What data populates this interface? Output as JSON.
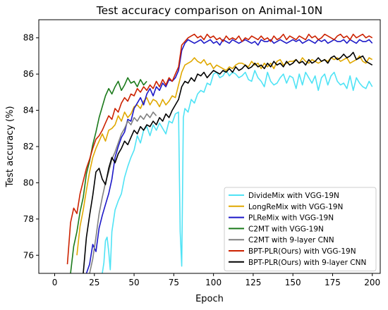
{
  "chart_data": {
    "type": "line",
    "title": "Test accuracy comparison on Animal-10N",
    "xlabel": "Epoch",
    "ylabel": "Test accuracy (%)",
    "xlim": [
      -10,
      205
    ],
    "ylim": [
      75,
      89
    ],
    "xticks": [
      0,
      25,
      50,
      75,
      100,
      125,
      150,
      175,
      200
    ],
    "yticks": [
      76,
      78,
      80,
      82,
      84,
      86,
      88
    ],
    "grid": false,
    "legend_position": "lower-right",
    "series": [
      {
        "name": "DivideMix with VGG-19N",
        "color": "#4fe3f5",
        "x": [
          30,
          31,
          32,
          33,
          34,
          35,
          36,
          38,
          40,
          42,
          44,
          46,
          48,
          50,
          52,
          54,
          56,
          58,
          60,
          62,
          64,
          66,
          68,
          70,
          72,
          74,
          76,
          78,
          79,
          80,
          81,
          82,
          84,
          86,
          88,
          90,
          92,
          94,
          96,
          98,
          100,
          102,
          104,
          106,
          108,
          110,
          112,
          114,
          116,
          118,
          120,
          122,
          124,
          126,
          128,
          130,
          132,
          134,
          136,
          138,
          140,
          142,
          144,
          146,
          148,
          150,
          152,
          154,
          156,
          158,
          160,
          162,
          164,
          166,
          168,
          170,
          172,
          174,
          176,
          178,
          180,
          182,
          184,
          186,
          188,
          190,
          192,
          194,
          196,
          198,
          200
        ],
        "y": [
          75.0,
          75.6,
          76.8,
          77.0,
          76.2,
          75.2,
          77.3,
          78.5,
          79.0,
          79.4,
          80.3,
          80.9,
          81.4,
          81.8,
          82.6,
          82.2,
          82.9,
          83.1,
          82.6,
          83.2,
          82.9,
          83.3,
          83.0,
          82.7,
          83.4,
          83.3,
          83.8,
          83.9,
          77.3,
          75.4,
          83.6,
          84.1,
          83.9,
          84.6,
          84.4,
          84.9,
          85.1,
          85.0,
          85.5,
          85.4,
          86.0,
          86.1,
          85.8,
          85.9,
          86.2,
          85.9,
          86.1,
          86.0,
          85.8,
          85.9,
          86.1,
          85.7,
          85.6,
          86.2,
          85.8,
          85.6,
          85.3,
          86.1,
          85.6,
          85.4,
          85.5,
          85.8,
          86.0,
          85.5,
          85.9,
          85.8,
          85.2,
          86.0,
          85.4,
          86.1,
          85.8,
          85.5,
          85.9,
          85.1,
          85.8,
          86.0,
          85.4,
          85.9,
          86.1,
          85.6,
          85.4,
          85.5,
          85.2,
          85.9,
          85.1,
          85.8,
          85.5,
          85.3,
          85.2,
          85.6,
          85.3
        ]
      },
      {
        "name": "LongReMix with VGG-19N",
        "color": "#e0a800",
        "x": [
          14,
          16,
          18,
          20,
          22,
          24,
          26,
          28,
          30,
          32,
          34,
          36,
          38,
          40,
          42,
          44,
          46,
          48,
          50,
          52,
          54,
          56,
          58,
          60,
          62,
          64,
          66,
          68,
          70,
          72,
          74,
          76,
          78,
          80,
          82,
          84,
          86,
          88,
          90,
          92,
          94,
          96,
          98,
          100,
          102,
          104,
          106,
          108,
          110,
          112,
          114,
          116,
          118,
          120,
          122,
          124,
          126,
          128,
          130,
          132,
          134,
          136,
          138,
          140,
          142,
          144,
          146,
          148,
          150,
          152,
          154,
          156,
          158,
          160,
          162,
          164,
          166,
          168,
          170,
          172,
          174,
          176,
          178,
          180,
          182,
          184,
          186,
          188,
          190,
          192,
          194,
          196,
          198,
          200
        ],
        "y": [
          76.0,
          77.6,
          78.5,
          79.6,
          80.6,
          81.4,
          81.9,
          82.3,
          82.7,
          82.3,
          82.9,
          83.0,
          83.2,
          83.7,
          83.4,
          83.9,
          83.6,
          83.8,
          84.2,
          84.3,
          84.1,
          84.5,
          84.7,
          84.3,
          84.6,
          84.5,
          84.2,
          84.6,
          84.3,
          84.5,
          84.8,
          84.7,
          85.4,
          86.1,
          86.5,
          86.6,
          86.7,
          86.9,
          86.7,
          86.6,
          86.8,
          86.5,
          86.6,
          86.3,
          86.5,
          86.4,
          86.3,
          86.2,
          86.4,
          86.3,
          86.5,
          86.6,
          86.6,
          86.5,
          86.4,
          86.7,
          86.5,
          86.6,
          86.3,
          86.6,
          86.4,
          86.6,
          86.3,
          86.7,
          86.8,
          86.5,
          86.6,
          86.7,
          86.7,
          86.8,
          86.6,
          86.9,
          86.7,
          86.6,
          86.8,
          86.7,
          86.6,
          86.7,
          86.8,
          86.7,
          86.9,
          86.8,
          86.9,
          86.7,
          86.8,
          86.9,
          86.6,
          86.7,
          86.8,
          87.0,
          86.7,
          86.6,
          86.9,
          86.8
        ]
      },
      {
        "name": "PLReMix with VGG-19N",
        "color": "#1c18c8",
        "x": [
          20,
          22,
          24,
          26,
          28,
          30,
          32,
          34,
          36,
          38,
          40,
          42,
          44,
          46,
          48,
          50,
          52,
          54,
          56,
          58,
          60,
          62,
          64,
          66,
          68,
          70,
          72,
          74,
          76,
          78,
          80,
          82,
          84,
          86,
          88,
          90,
          92,
          94,
          96,
          98,
          100,
          102,
          104,
          106,
          108,
          110,
          112,
          114,
          116,
          118,
          120,
          122,
          124,
          126,
          128,
          130,
          132,
          134,
          136,
          138,
          140,
          142,
          144,
          146,
          148,
          150,
          152,
          154,
          156,
          158,
          160,
          162,
          164,
          166,
          168,
          170,
          172,
          174,
          176,
          178,
          180,
          182,
          184,
          186,
          188,
          190,
          192,
          194,
          196,
          198,
          200
        ],
        "y": [
          75.0,
          75.5,
          76.6,
          76.2,
          77.5,
          78.2,
          78.8,
          79.4,
          80.2,
          81.4,
          82.0,
          82.5,
          82.8,
          83.5,
          83.4,
          84.1,
          84.4,
          84.7,
          84.3,
          84.9,
          85.2,
          84.8,
          85.3,
          85.1,
          85.5,
          85.3,
          85.7,
          85.6,
          85.8,
          86.2,
          87.3,
          87.7,
          87.9,
          87.8,
          87.7,
          87.8,
          87.9,
          87.7,
          87.8,
          87.9,
          87.7,
          87.8,
          87.6,
          87.9,
          87.8,
          87.7,
          87.9,
          87.8,
          87.7,
          87.8,
          87.9,
          87.8,
          87.7,
          87.8,
          87.6,
          87.9,
          87.8,
          87.8,
          87.9,
          87.7,
          87.8,
          87.9,
          87.8,
          87.7,
          87.8,
          87.9,
          87.8,
          87.9,
          87.7,
          87.8,
          87.9,
          87.8,
          87.7,
          87.9,
          87.8,
          87.9,
          87.7,
          87.8,
          87.9,
          87.8,
          87.8,
          87.9,
          87.7,
          87.9,
          87.8,
          87.7,
          87.9,
          87.8,
          87.8,
          87.9,
          87.7
        ]
      },
      {
        "name": "C2MT with VGG-19N",
        "color": "#1b7a1b",
        "x": [
          10,
          12,
          14,
          16,
          18,
          20,
          22,
          24,
          26,
          28,
          30,
          32,
          34,
          36,
          38,
          40,
          42,
          44,
          46,
          48,
          50,
          52,
          54,
          56,
          58
        ],
        "y": [
          75.0,
          76.5,
          77.3,
          78.4,
          79.2,
          80.5,
          81.2,
          82.1,
          82.8,
          83.6,
          84.2,
          84.8,
          85.2,
          84.9,
          85.3,
          85.6,
          85.1,
          85.4,
          85.8,
          85.5,
          85.6,
          85.3,
          85.7,
          85.4,
          85.6
        ]
      },
      {
        "name": "C2MT with 9-layer CNN",
        "color": "#808080",
        "x": [
          22,
          24,
          26,
          28,
          30,
          32,
          34,
          36,
          38,
          40,
          42,
          44,
          46,
          48,
          50,
          52,
          54,
          56,
          58,
          60,
          62,
          64
        ],
        "y": [
          75.0,
          75.8,
          77.0,
          78.3,
          79.2,
          80.0,
          80.6,
          81.3,
          81.7,
          82.2,
          82.7,
          83.0,
          83.4,
          83.2,
          83.6,
          83.4,
          83.7,
          83.5,
          83.8,
          83.6,
          83.9,
          83.7
        ]
      },
      {
        "name": "BPT-PLR(Ours) with VGG-19N",
        "color": "#cc2200",
        "x": [
          8,
          10,
          12,
          14,
          16,
          18,
          20,
          22,
          24,
          26,
          28,
          30,
          32,
          34,
          36,
          38,
          40,
          42,
          44,
          46,
          48,
          50,
          52,
          54,
          56,
          58,
          60,
          62,
          64,
          66,
          68,
          70,
          72,
          74,
          76,
          78,
          80,
          82,
          84,
          86,
          88,
          90,
          92,
          94,
          96,
          98,
          100,
          102,
          104,
          106,
          108,
          110,
          112,
          114,
          116,
          118,
          120,
          122,
          124,
          126,
          128,
          130,
          132,
          134,
          136,
          138,
          140,
          142,
          144,
          146,
          148,
          150,
          152,
          154,
          156,
          158,
          160,
          162,
          164,
          166,
          168,
          170,
          172,
          174,
          176,
          178,
          180,
          182,
          184,
          186,
          188,
          190,
          192,
          194,
          196,
          198,
          200
        ],
        "y": [
          75.5,
          77.8,
          78.6,
          78.3,
          79.4,
          80.1,
          80.8,
          81.3,
          81.9,
          82.4,
          82.6,
          82.9,
          83.3,
          83.7,
          83.5,
          84.1,
          83.9,
          84.4,
          84.7,
          84.5,
          84.9,
          84.8,
          85.2,
          85.0,
          85.3,
          85.1,
          85.4,
          85.2,
          85.6,
          85.3,
          85.7,
          85.4,
          85.8,
          85.6,
          86.0,
          86.4,
          87.6,
          87.8,
          88.0,
          88.1,
          88.2,
          88.0,
          88.1,
          87.9,
          88.2,
          88.0,
          88.1,
          87.9,
          88.0,
          87.8,
          88.1,
          87.9,
          88.0,
          87.9,
          88.1,
          87.8,
          88.0,
          87.9,
          88.1,
          88.0,
          87.9,
          88.1,
          87.9,
          88.0,
          87.8,
          88.1,
          87.9,
          88.0,
          88.2,
          87.9,
          88.1,
          88.0,
          87.9,
          88.1,
          88.0,
          87.9,
          88.2,
          88.0,
          88.1,
          87.9,
          88.0,
          88.2,
          88.1,
          88.0,
          87.9,
          88.1,
          88.2,
          88.0,
          88.1,
          87.9,
          88.2,
          88.0,
          88.1,
          88.2,
          88.0,
          88.1,
          88.0
        ]
      },
      {
        "name": "BPT-PLR(Ours) with 9-layer CNN",
        "color": "#000000",
        "x": [
          18,
          20,
          22,
          24,
          26,
          28,
          30,
          32,
          34,
          36,
          38,
          40,
          42,
          44,
          46,
          48,
          50,
          52,
          54,
          56,
          58,
          60,
          62,
          64,
          66,
          68,
          70,
          72,
          74,
          76,
          78,
          80,
          82,
          84,
          86,
          88,
          90,
          92,
          94,
          96,
          98,
          100,
          102,
          104,
          106,
          108,
          110,
          112,
          114,
          116,
          118,
          120,
          122,
          124,
          126,
          128,
          130,
          132,
          134,
          136,
          138,
          140,
          142,
          144,
          146,
          148,
          150,
          152,
          154,
          156,
          158,
          160,
          162,
          164,
          166,
          168,
          170,
          172,
          174,
          176,
          178,
          180,
          182,
          184,
          186,
          188,
          190,
          192,
          194,
          196,
          198,
          200
        ],
        "y": [
          75.0,
          77.0,
          78.2,
          79.3,
          80.6,
          80.8,
          80.2,
          79.9,
          80.8,
          81.4,
          81.1,
          81.6,
          81.9,
          82.3,
          82.1,
          82.5,
          82.9,
          82.7,
          83.1,
          82.9,
          83.2,
          83.1,
          83.4,
          83.2,
          83.6,
          83.4,
          83.8,
          83.6,
          84.0,
          84.3,
          84.6,
          85.3,
          85.6,
          85.5,
          85.8,
          85.6,
          86.0,
          85.9,
          86.1,
          85.8,
          86.0,
          86.2,
          86.1,
          86.0,
          86.2,
          86.1,
          86.3,
          86.1,
          86.4,
          86.2,
          86.3,
          86.5,
          86.3,
          86.4,
          86.6,
          86.4,
          86.5,
          86.3,
          86.6,
          86.4,
          86.7,
          86.5,
          86.6,
          86.4,
          86.7,
          86.5,
          86.6,
          86.8,
          86.6,
          86.7,
          86.5,
          86.8,
          86.6,
          86.7,
          86.9,
          86.7,
          86.8,
          86.6,
          86.9,
          87.0,
          86.8,
          86.9,
          87.1,
          86.9,
          87.0,
          87.2,
          86.8,
          86.9,
          87.0,
          86.7,
          86.6,
          86.5
        ]
      }
    ]
  }
}
